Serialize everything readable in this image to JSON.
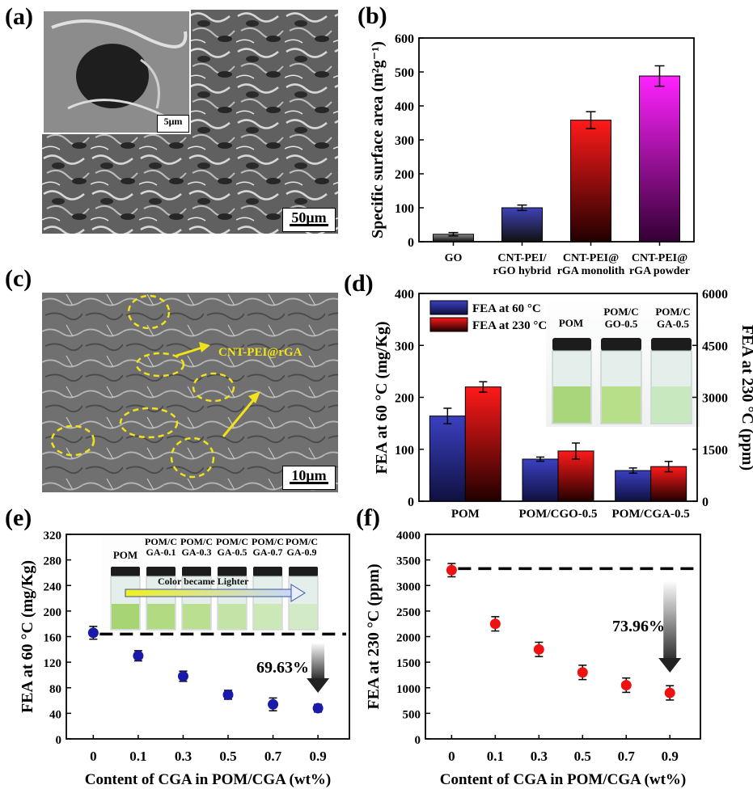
{
  "panels": {
    "a": {
      "label": "(a)",
      "scale_main": "50μm",
      "scale_inset": "5μm"
    },
    "c": {
      "label": "(c)",
      "scale": "10μm",
      "annotation": "CNT-PEI@rGA"
    },
    "d": {
      "photo_labels": [
        "POM",
        "POM/C\nGO-0.5",
        "POM/C\nGA-0.5"
      ]
    },
    "e": {
      "photo_labels": [
        "POM",
        "POM/C\nGA-0.1",
        "POM/C\nGA-0.3",
        "POM/C\nGA-0.5",
        "POM/C\nGA-0.7",
        "POM/C\nGA-0.9"
      ],
      "photo_arrow_text": "Color became Lighter"
    }
  },
  "colors": {
    "bar_go": "#5a5a5a",
    "bar_hybrid": "#3f43a8",
    "bar_monolith": "#e01010",
    "bar_powder": "#e010e0",
    "fea60": "#3338a8",
    "fea230": "#e01515",
    "marker_e": "#1a1aa8",
    "marker_f": "#ee1111"
  },
  "chart_data": [
    {
      "id": "b",
      "panel_label": "(b)",
      "type": "bar",
      "categories": [
        "GO",
        "CNT-PEI/\nrGO hybrid",
        "CNT-PEI@\nrGA monolith",
        "CNT-PEI@\nrGA powder"
      ],
      "values": [
        22,
        100,
        358,
        488
      ],
      "errors": [
        5,
        8,
        25,
        30
      ],
      "ylabel": "Specific surface area (m²g⁻¹)",
      "ylim": [
        0,
        600
      ],
      "yticks": [
        0,
        100,
        200,
        300,
        400,
        500,
        600
      ]
    },
    {
      "id": "d",
      "panel_label": "(d)",
      "type": "bar",
      "categories": [
        "POM",
        "POM/CGO-0.5",
        "POM/CGA-0.5"
      ],
      "series": [
        {
          "name": "FEA at 60 °C",
          "axis": "left",
          "values": [
            164,
            81,
            59
          ],
          "errors": [
            15,
            4,
            5
          ]
        },
        {
          "name": "FEA at 230 °C",
          "axis": "right",
          "values": [
            3300,
            1450,
            1000
          ],
          "errors": [
            150,
            230,
            150
          ]
        }
      ],
      "ylabel": "FEA at 60 °C (mg/Kg)",
      "ylim": [
        0,
        400
      ],
      "yticks": [
        0,
        100,
        200,
        300,
        400
      ],
      "y2label": "FEA at 230 °C (ppm)",
      "y2lim": [
        0,
        6000
      ],
      "y2ticks": [
        0,
        1500,
        3000,
        4500,
        6000
      ]
    },
    {
      "id": "e",
      "panel_label": "(e)",
      "type": "scatter",
      "x": [
        "0",
        "0.1",
        "0.3",
        "0.5",
        "0.7",
        "0.9"
      ],
      "values": [
        166,
        130,
        98,
        69,
        54,
        48
      ],
      "errors": [
        10,
        8,
        8,
        7,
        10,
        6
      ],
      "reference": 164,
      "annotation": "69.63%",
      "xlabel": "Content of CGA in POM/CGA (wt%)",
      "ylabel": "FEA at 60 °C (mg/Kg)",
      "ylim": [
        0,
        320
      ],
      "yticks": [
        0,
        40,
        80,
        120,
        160,
        200,
        240,
        280,
        320
      ]
    },
    {
      "id": "f",
      "panel_label": "(f)",
      "type": "scatter",
      "x": [
        "0",
        "0.1",
        "0.3",
        "0.5",
        "0.7",
        "0.9"
      ],
      "values": [
        3300,
        2250,
        1750,
        1300,
        1050,
        900
      ],
      "errors": [
        130,
        140,
        140,
        140,
        140,
        140
      ],
      "reference": 3330,
      "annotation": "73.96%",
      "xlabel": "Content of CGA in POM/CGA (wt%)",
      "ylabel": "FEA at 230 °C (ppm)",
      "ylim": [
        0,
        4000
      ],
      "yticks": [
        0,
        500,
        1000,
        1500,
        2000,
        2500,
        3000,
        3500,
        4000
      ]
    }
  ]
}
